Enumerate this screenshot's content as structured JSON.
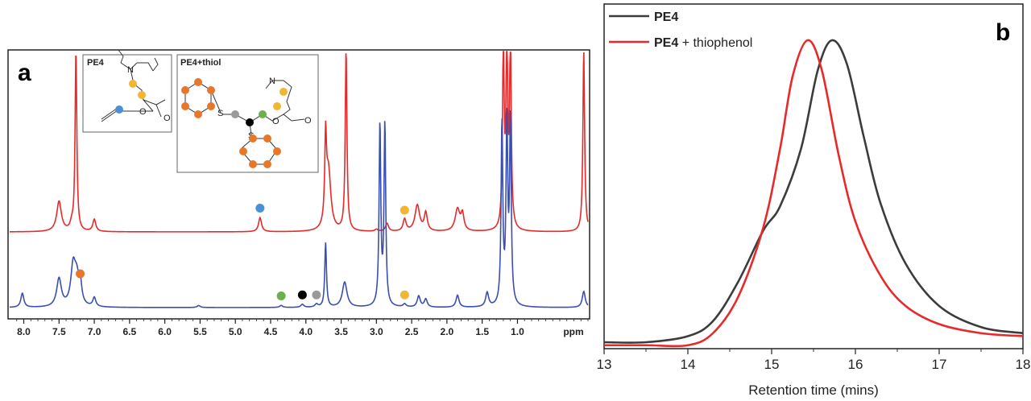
{
  "chart_data": [
    {
      "panel": "a",
      "type": "line",
      "xlabel": "ppm",
      "x_ticks": [
        8.0,
        7.5,
        7.0,
        6.5,
        6.0,
        5.5,
        5.0,
        4.5,
        4.0,
        3.5,
        3.0,
        2.5,
        2.0,
        1.5,
        1.0
      ],
      "xlim": [
        8.2,
        0.0
      ],
      "inset_labels": {
        "pe4": "PE4",
        "pe4_thiol": "PE4+thiol"
      },
      "marker_colors": {
        "blue": "#4a90d9",
        "orange": "#e8762b",
        "yellow": "#f2b632",
        "green": "#6ab04c",
        "black": "#000000",
        "grey": "#9a9a9a"
      },
      "series": [
        {
          "color": "#e8292a",
          "peaks": [
            [
              7.5,
              150
            ],
            [
              7.26,
              900
            ],
            [
              7.32,
              30
            ],
            [
              7.0,
              60
            ],
            [
              4.65,
              70
            ],
            [
              3.72,
              400
            ],
            [
              3.68,
              300
            ],
            [
              3.43,
              900
            ],
            [
              3.0,
              10
            ],
            [
              2.85,
              40
            ],
            [
              2.6,
              60
            ],
            [
              2.42,
              130
            ],
            [
              2.3,
              90
            ],
            [
              1.85,
              110
            ],
            [
              1.78,
              80
            ],
            [
              1.2,
              900
            ],
            [
              1.15,
              900
            ],
            [
              1.1,
              900
            ],
            [
              0.06,
              900
            ]
          ]
        },
        {
          "color": "#3a4fae",
          "peaks": [
            [
              8.02,
              70
            ],
            [
              7.5,
              140
            ],
            [
              7.3,
              190
            ],
            [
              7.25,
              120
            ],
            [
              7.2,
              100
            ],
            [
              7.0,
              45
            ],
            [
              5.52,
              10
            ],
            [
              4.35,
              10
            ],
            [
              4.05,
              15
            ],
            [
              3.85,
              15
            ],
            [
              3.72,
              320
            ],
            [
              3.45,
              125
            ],
            [
              2.95,
              900
            ],
            [
              2.88,
              900
            ],
            [
              2.6,
              15
            ],
            [
              2.4,
              55
            ],
            [
              2.3,
              40
            ],
            [
              1.85,
              60
            ],
            [
              1.43,
              70
            ],
            [
              1.22,
              900
            ],
            [
              1.15,
              900
            ],
            [
              1.1,
              900
            ],
            [
              0.06,
              80
            ]
          ]
        }
      ],
      "annotations": [
        {
          "marker": "blue",
          "series": 0,
          "ppm": 4.65
        },
        {
          "marker": "yellow",
          "series": 0,
          "ppm": 2.6
        },
        {
          "marker": "orange",
          "series": 1,
          "ppm": 7.2
        },
        {
          "marker": "green",
          "series": 1,
          "ppm": 4.35
        },
        {
          "marker": "black",
          "series": 1,
          "ppm": 4.05
        },
        {
          "marker": "grey",
          "series": 1,
          "ppm": 3.85
        },
        {
          "marker": "yellow",
          "series": 1,
          "ppm": 2.6
        }
      ]
    },
    {
      "panel": "b",
      "type": "line",
      "xlabel": "Retention time (mins)",
      "ylabel": "",
      "xlim": [
        13,
        18
      ],
      "x_ticks": [
        "13",
        "14",
        "15",
        "16",
        "17",
        "18"
      ],
      "legend": "top-left",
      "series": [
        {
          "name_bold": "PE4",
          "name_suffix": "",
          "color": "#3c3c3c",
          "x": [
            13.0,
            13.5,
            14.0,
            14.3,
            14.6,
            14.9,
            15.1,
            15.35,
            15.55,
            15.72,
            15.9,
            16.1,
            16.3,
            16.6,
            17.0,
            17.5,
            18.0
          ],
          "y": [
            0.0,
            0.0,
            0.02,
            0.07,
            0.2,
            0.37,
            0.45,
            0.64,
            0.9,
            1.0,
            0.92,
            0.68,
            0.46,
            0.26,
            0.12,
            0.05,
            0.03
          ]
        },
        {
          "name_bold": "PE4",
          "name_suffix": " + thiophenol",
          "color": "#e8292a",
          "x": [
            13.0,
            13.5,
            14.0,
            14.3,
            14.6,
            14.9,
            15.1,
            15.25,
            15.43,
            15.6,
            15.8,
            16.0,
            16.3,
            16.6,
            17.0,
            17.5,
            18.0
          ],
          "y": [
            -0.01,
            -0.01,
            -0.01,
            0.03,
            0.15,
            0.38,
            0.64,
            0.88,
            1.0,
            0.9,
            0.62,
            0.4,
            0.22,
            0.12,
            0.06,
            0.03,
            0.02
          ]
        }
      ]
    }
  ]
}
